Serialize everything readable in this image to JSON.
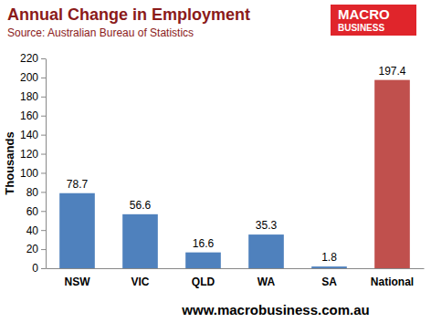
{
  "chart_data": {
    "type": "bar",
    "title": "Annual Change in Employment",
    "subtitle": "Source: Australian Bureau of Statistics",
    "y_label": "Thousands",
    "annotations": [
      "MACRO",
      "BUSINESS",
      "www.macrobusiness.com.au"
    ],
    "categories": [
      "NSW",
      "VIC",
      "QLD",
      "WA",
      "SA",
      "National"
    ],
    "values": [
      78.7,
      56.6,
      16.6,
      35.3,
      1.8,
      197.4
    ],
    "colors": [
      "#4f81bd",
      "#4f81bd",
      "#4f81bd",
      "#4f81bd",
      "#4f81bd",
      "#c0504d"
    ],
    "ylim": [
      0,
      220
    ],
    "yticks": [
      0,
      20,
      40,
      60,
      80,
      100,
      120,
      140,
      160,
      180,
      200,
      220
    ],
    "grid": false,
    "data_labels": true
  }
}
